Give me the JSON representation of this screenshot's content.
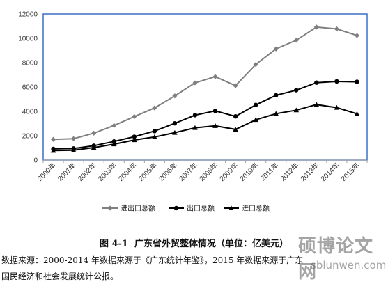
{
  "chart_data": {
    "type": "line",
    "categories": [
      "2000年",
      "2001年",
      "2002年",
      "2003年",
      "2004年",
      "2005年",
      "2006年",
      "2007年",
      "2008年",
      "2009年",
      "2010年",
      "2011年",
      "2012年",
      "2013年",
      "2014年",
      "2015年"
    ],
    "ylim": [
      0,
      12000
    ],
    "yticks": [
      0,
      2000,
      4000,
      6000,
      8000,
      10000,
      12000
    ],
    "grid": false,
    "legend_position": "bottom",
    "series": [
      {
        "name": "进出口总额",
        "marker": "diamond",
        "color": "#7f7f7f",
        "values": [
          1700,
          1760,
          2210,
          2840,
          3570,
          4280,
          5270,
          6340,
          6850,
          6110,
          7850,
          9130,
          9840,
          10920,
          10770,
          10230
        ]
      },
      {
        "name": "出口总额",
        "marker": "circle",
        "color": "#000000",
        "values": [
          920,
          950,
          1180,
          1530,
          1920,
          2380,
          3020,
          3690,
          4040,
          3590,
          4530,
          5320,
          5740,
          6360,
          6460,
          6430
        ]
      },
      {
        "name": "进口总额",
        "marker": "triangle",
        "color": "#000000",
        "values": [
          780,
          810,
          1030,
          1310,
          1650,
          1900,
          2250,
          2650,
          2810,
          2520,
          3310,
          3810,
          4100,
          4560,
          4310,
          3800
        ]
      }
    ]
  },
  "caption": {
    "figure_no": "图 4-1",
    "title": "广东省外贸整体情况（单位：亿美元）"
  },
  "source_note": {
    "line1": "数据来源：2000-2014 年数据来源于《广东统计年鉴》，2015 年数据来源于广东",
    "line2": "国民经济和社会发展统计公报。"
  },
  "watermark": {
    "main": "硕博论文网",
    "sub": "sblunwen.com"
  }
}
